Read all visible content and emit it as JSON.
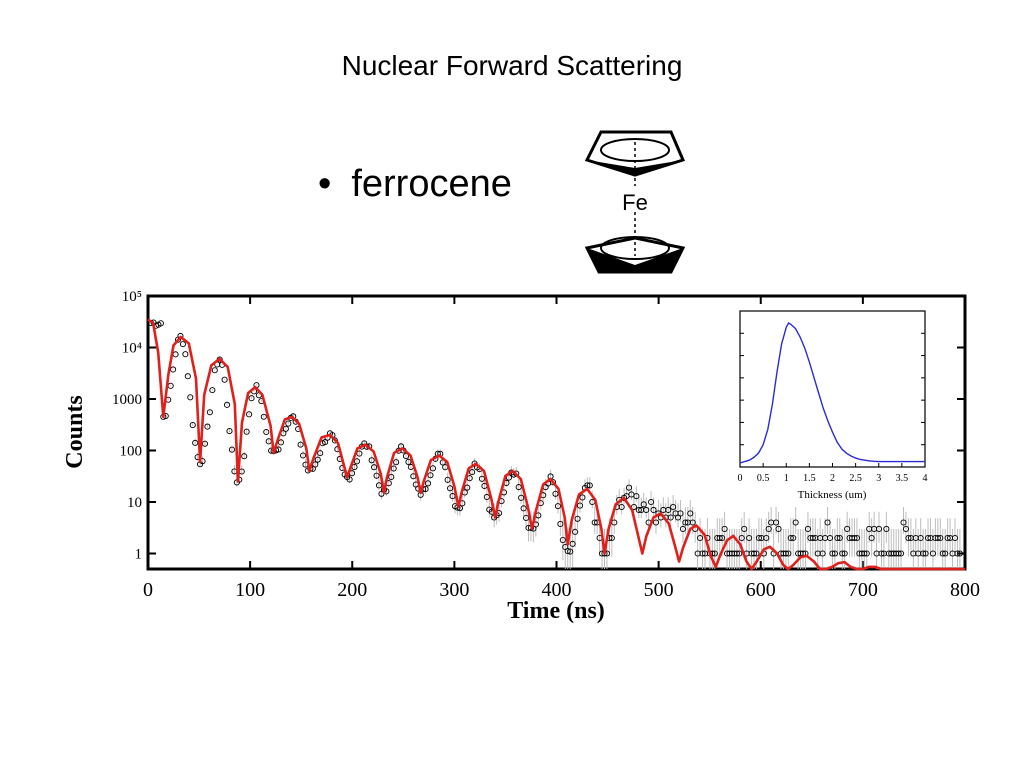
{
  "slide": {
    "title": "Nuclear Forward Scattering",
    "bullet_text": "ferrocene",
    "molecule_label": "Fe"
  },
  "colors": {
    "data_points": "#000000",
    "error_bars": "#bdbdbd",
    "fit_line": "#e0201b",
    "inset_line": "#2b2bd6"
  },
  "chart_data": [
    {
      "type": "scatter",
      "xlabel": "Time (ns)",
      "ylabel": "Counts",
      "xlim": [
        0,
        800
      ],
      "ylim": [
        0.5,
        100000
      ],
      "yscale": "log",
      "x_ticks": [
        "0",
        "100",
        "200",
        "300",
        "400",
        "500",
        "600",
        "700",
        "800"
      ],
      "y_ticks": [
        {
          "value": 1,
          "label": "1"
        },
        {
          "value": 10,
          "label": "10"
        },
        {
          "value": 100,
          "label": "100"
        },
        {
          "value": 1000,
          "label": "1000"
        },
        {
          "value": 10000,
          "label": "10⁴"
        },
        {
          "value": 100000,
          "label": "10⁵"
        }
      ],
      "series": [
        {
          "kind": "data_points",
          "beat_minima": [
            [
              15,
              450
            ],
            [
              51,
              60
            ],
            [
              88,
              25
            ],
            [
              123,
              90
            ],
            [
              158,
              40
            ],
            [
              195,
              30
            ],
            [
              231,
              15
            ],
            [
              267,
              15
            ],
            [
              304,
              8
            ],
            [
              340,
              5
            ],
            [
              376,
              3
            ],
            [
              411,
              1
            ],
            [
              447,
              1
            ]
          ],
          "beat_maxima": [
            [
              32,
              16000
            ],
            [
              70,
              6000
            ],
            [
              105,
              1700
            ],
            [
              141,
              450
            ],
            [
              178,
              200
            ],
            [
              213,
              130
            ],
            [
              249,
              110
            ],
            [
              285,
              80
            ],
            [
              321,
              55
            ],
            [
              357,
              40
            ],
            [
              394,
              28
            ],
            [
              430,
              18
            ],
            [
              466,
              13
            ],
            [
              502,
              6
            ],
            [
              537,
              4
            ]
          ]
        },
        {
          "kind": "fit_line",
          "points": [
            [
              0,
              35000
            ],
            [
              5,
              30000
            ],
            [
              10,
              8000
            ],
            [
              15,
              450
            ],
            [
              20,
              3000
            ],
            [
              25,
              11000
            ],
            [
              32,
              16000
            ],
            [
              40,
              12000
            ],
            [
              47,
              2500
            ],
            [
              51,
              60
            ],
            [
              55,
              1200
            ],
            [
              62,
              4500
            ],
            [
              70,
              6000
            ],
            [
              78,
              4200
            ],
            [
              85,
              800
            ],
            [
              88,
              25
            ],
            [
              92,
              350
            ],
            [
              98,
              1300
            ],
            [
              105,
              1700
            ],
            [
              112,
              1200
            ],
            [
              120,
              300
            ],
            [
              123,
              90
            ],
            [
              127,
              160
            ],
            [
              134,
              400
            ],
            [
              141,
              450
            ],
            [
              148,
              330
            ],
            [
              155,
              110
            ],
            [
              158,
              40
            ],
            [
              162,
              70
            ],
            [
              170,
              180
            ],
            [
              178,
              200
            ],
            [
              186,
              140
            ],
            [
              192,
              50
            ],
            [
              195,
              30
            ],
            [
              198,
              45
            ],
            [
              205,
              110
            ],
            [
              213,
              130
            ],
            [
              221,
              95
            ],
            [
              228,
              35
            ],
            [
              231,
              15
            ],
            [
              234,
              30
            ],
            [
              241,
              90
            ],
            [
              249,
              110
            ],
            [
              257,
              80
            ],
            [
              264,
              30
            ],
            [
              267,
              15
            ],
            [
              270,
              25
            ],
            [
              277,
              65
            ],
            [
              285,
              80
            ],
            [
              293,
              60
            ],
            [
              300,
              20
            ],
            [
              304,
              8
            ],
            [
              307,
              15
            ],
            [
              314,
              45
            ],
            [
              321,
              55
            ],
            [
              329,
              40
            ],
            [
              336,
              12
            ],
            [
              340,
              5
            ],
            [
              343,
              10
            ],
            [
              350,
              32
            ],
            [
              357,
              40
            ],
            [
              365,
              28
            ],
            [
              372,
              8
            ],
            [
              376,
              3
            ],
            [
              380,
              7
            ],
            [
              387,
              22
            ],
            [
              394,
              28
            ],
            [
              402,
              18
            ],
            [
              408,
              5
            ],
            [
              411,
              1.5
            ],
            [
              415,
              4.5
            ],
            [
              422,
              14
            ],
            [
              430,
              18
            ],
            [
              438,
              11
            ],
            [
              444,
              3
            ],
            [
              447,
              1
            ],
            [
              451,
              3
            ],
            [
              458,
              9
            ],
            [
              466,
              12
            ],
            [
              474,
              7
            ],
            [
              480,
              2.2
            ],
            [
              484,
              1
            ],
            [
              488,
              2.2
            ],
            [
              495,
              5
            ],
            [
              502,
              6
            ],
            [
              510,
              3.8
            ],
            [
              516,
              1.4
            ],
            [
              520,
              0.7
            ],
            [
              524,
              1.3
            ],
            [
              531,
              3
            ],
            [
              537,
              3.5
            ],
            [
              545,
              2.3
            ],
            [
              551,
              0.9
            ],
            [
              556,
              0.55
            ],
            [
              560,
              0.9
            ],
            [
              567,
              1.8
            ],
            [
              573,
              2.2
            ],
            [
              580,
              1.5
            ],
            [
              586,
              0.7
            ],
            [
              591,
              0.5
            ],
            [
              596,
              0.7
            ],
            [
              603,
              1.2
            ],
            [
              609,
              1.35
            ],
            [
              616,
              1
            ],
            [
              622,
              0.6
            ],
            [
              627,
              0.5
            ],
            [
              632,
              0.6
            ],
            [
              639,
              0.85
            ],
            [
              645,
              0.9
            ],
            [
              652,
              0.7
            ],
            [
              658,
              0.5
            ],
            [
              664,
              0.45
            ],
            [
              670,
              0.55
            ],
            [
              676,
              0.65
            ],
            [
              682,
              0.68
            ],
            [
              688,
              0.55
            ],
            [
              694,
              0.48
            ],
            [
              700,
              0.5
            ],
            [
              706,
              0.55
            ],
            [
              712,
              0.55
            ],
            [
              718,
              0.5
            ],
            [
              724,
              0.5
            ],
            [
              730,
              0.5
            ],
            [
              760,
              0.5
            ],
            [
              800,
              0.5
            ]
          ]
        }
      ]
    },
    {
      "type": "line",
      "xlabel": "Thickness (um)",
      "ylabel": "",
      "xlim": [
        0,
        4
      ],
      "x_ticks": [
        "0",
        "0.5",
        "1",
        "1.5",
        "2",
        "2.5",
        "3",
        "3.5",
        "4"
      ],
      "series": [
        {
          "x": [
            0,
            0.1,
            0.2,
            0.3,
            0.4,
            0.5,
            0.6,
            0.7,
            0.8,
            0.9,
            1.0,
            1.05,
            1.1,
            1.2,
            1.3,
            1.4,
            1.5,
            1.6,
            1.7,
            1.8,
            1.9,
            2.0,
            2.1,
            2.2,
            2.3,
            2.4,
            2.5,
            2.6,
            2.7,
            2.8,
            2.9,
            3.0,
            3.2,
            3.4,
            3.6,
            3.8,
            4.0
          ],
          "y": [
            0.0,
            0.01,
            0.02,
            0.04,
            0.07,
            0.13,
            0.24,
            0.42,
            0.65,
            0.85,
            0.97,
            1.0,
            0.99,
            0.96,
            0.9,
            0.82,
            0.72,
            0.61,
            0.5,
            0.39,
            0.3,
            0.22,
            0.15,
            0.1,
            0.07,
            0.05,
            0.035,
            0.025,
            0.02,
            0.015,
            0.012,
            0.01,
            0.01,
            0.01,
            0.01,
            0.01,
            0.01
          ]
        }
      ]
    }
  ]
}
